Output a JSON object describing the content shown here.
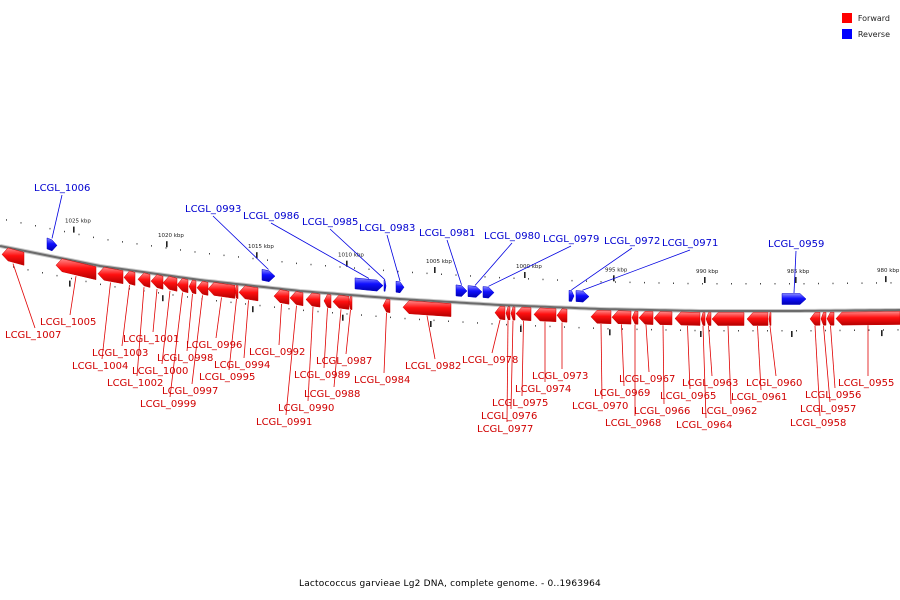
{
  "legend": {
    "forward_label": "Forward",
    "reverse_label": "Reverse",
    "forward_color": "#ff0000",
    "reverse_color": "#0000ff"
  },
  "caption": "Lactococcus garvieae Lg2 DNA, complete genome. - 0..1963964",
  "axis": {
    "direction": "decreasing-left-to-right",
    "unit": "kbp",
    "ticks": [
      "1025 kbp",
      "1020 kbp",
      "1015 kbp",
      "1010 kbp",
      "1005 kbp",
      "1000 kbp",
      "995 kbp",
      "990 kbp",
      "985 kbp",
      "980 kbp"
    ]
  },
  "genes_forward": [
    {
      "label": "LCGL_1007",
      "strand": "forward"
    },
    {
      "label": "LCGL_1005",
      "strand": "forward"
    },
    {
      "label": "LCGL_1004",
      "strand": "forward"
    },
    {
      "label": "LCGL_1003",
      "strand": "forward"
    },
    {
      "label": "LCGL_1002",
      "strand": "forward"
    },
    {
      "label": "LCGL_1001",
      "strand": "forward"
    },
    {
      "label": "LCGL_1000",
      "strand": "forward"
    },
    {
      "label": "LCGL_0999",
      "strand": "forward"
    },
    {
      "label": "LCGL_0998",
      "strand": "forward"
    },
    {
      "label": "LCGL_0997",
      "strand": "forward"
    },
    {
      "label": "LCGL_0996",
      "strand": "forward"
    },
    {
      "label": "LCGL_0995",
      "strand": "forward"
    },
    {
      "label": "LCGL_0994",
      "strand": "forward"
    },
    {
      "label": "LCGL_0992",
      "strand": "forward"
    },
    {
      "label": "LCGL_0991",
      "strand": "forward"
    },
    {
      "label": "LCGL_0990",
      "strand": "forward"
    },
    {
      "label": "LCGL_0989",
      "strand": "forward"
    },
    {
      "label": "LCGL_0988",
      "strand": "forward"
    },
    {
      "label": "LCGL_0987",
      "strand": "forward"
    },
    {
      "label": "LCGL_0984",
      "strand": "forward"
    },
    {
      "label": "LCGL_0982",
      "strand": "forward"
    },
    {
      "label": "LCGL_0978",
      "strand": "forward"
    },
    {
      "label": "LCGL_0977",
      "strand": "forward"
    },
    {
      "label": "LCGL_0976",
      "strand": "forward"
    },
    {
      "label": "LCGL_0975",
      "strand": "forward"
    },
    {
      "label": "LCGL_0974",
      "strand": "forward"
    },
    {
      "label": "LCGL_0973",
      "strand": "forward"
    },
    {
      "label": "LCGL_0970",
      "strand": "forward"
    },
    {
      "label": "LCGL_0969",
      "strand": "forward"
    },
    {
      "label": "LCGL_0968",
      "strand": "forward"
    },
    {
      "label": "LCGL_0967",
      "strand": "forward"
    },
    {
      "label": "LCGL_0966",
      "strand": "forward"
    },
    {
      "label": "LCGL_0965",
      "strand": "forward"
    },
    {
      "label": "LCGL_0964",
      "strand": "forward"
    },
    {
      "label": "LCGL_0963",
      "strand": "forward"
    },
    {
      "label": "LCGL_0962",
      "strand": "forward"
    },
    {
      "label": "LCGL_0961",
      "strand": "forward"
    },
    {
      "label": "LCGL_0960",
      "strand": "forward"
    },
    {
      "label": "LCGL_0958",
      "strand": "forward"
    },
    {
      "label": "LCGL_0957",
      "strand": "forward"
    },
    {
      "label": "LCGL_0956",
      "strand": "forward"
    },
    {
      "label": "LCGL_0955",
      "strand": "forward"
    }
  ],
  "genes_reverse": [
    {
      "label": "LCGL_1006",
      "strand": "reverse"
    },
    {
      "label": "LCGL_0993",
      "strand": "reverse"
    },
    {
      "label": "LCGL_0986",
      "strand": "reverse"
    },
    {
      "label": "LCGL_0985",
      "strand": "reverse"
    },
    {
      "label": "LCGL_0983",
      "strand": "reverse"
    },
    {
      "label": "LCGL_0981",
      "strand": "reverse"
    },
    {
      "label": "LCGL_0980",
      "strand": "reverse"
    },
    {
      "label": "LCGL_0979",
      "strand": "reverse"
    },
    {
      "label": "LCGL_0972",
      "strand": "reverse"
    },
    {
      "label": "LCGL_0971",
      "strand": "reverse"
    },
    {
      "label": "LCGL_0959",
      "strand": "reverse"
    }
  ]
}
